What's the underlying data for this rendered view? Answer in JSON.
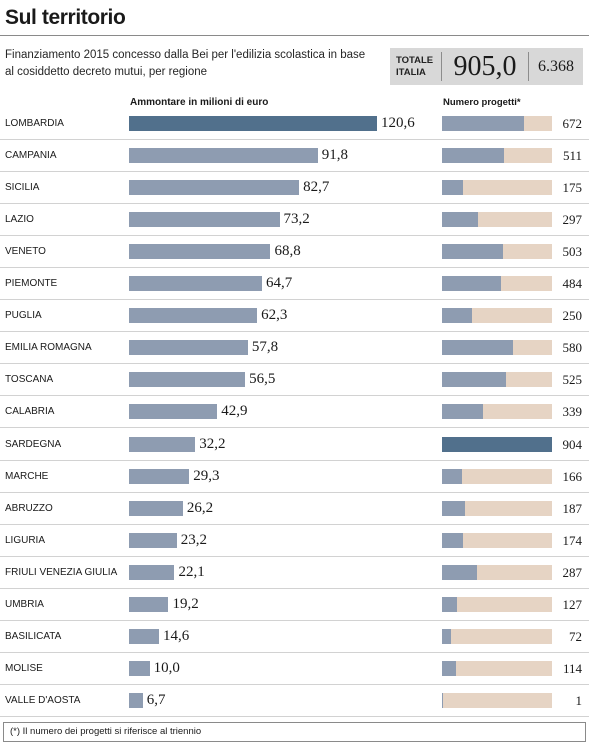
{
  "total": {
    "label_line1": "TOTALE",
    "label_line2": "ITALIA",
    "amount": "905,0",
    "projects": "6.368"
  },
  "footnote": "(*) Il numero dei progetti si riferisce al triennio",
  "colors": {
    "bar": "#8e9cb1",
    "bar_highlight": "#51708c",
    "track": "#e6d4c4"
  },
  "chart_data": {
    "type": "bar",
    "orientation": "horizontal",
    "title": "Sul territorio",
    "subtitle": "Finanziamento 2015 concesso dalla Bei per l'edilizia scolastica in base al cosiddetto decreto mutui, per regione",
    "categories": [
      "LOMBARDIA",
      "CAMPANIA",
      "SICILIA",
      "LAZIO",
      "VENETO",
      "PIEMONTE",
      "PUGLIA",
      "EMILIA ROMAGNA",
      "TOSCANA",
      "CALABRIA",
      "SARDEGNA",
      "MARCHE",
      "ABRUZZO",
      "LIGURIA",
      "FRIULI VENEZIA GIULIA",
      "UMBRIA",
      "BASILICATA",
      "MOLISE",
      "VALLE D'AOSTA"
    ],
    "series": [
      {
        "name": "Ammontare in milioni di euro",
        "values": [
          120.6,
          91.8,
          82.7,
          73.2,
          68.8,
          64.7,
          62.3,
          57.8,
          56.5,
          42.9,
          32.2,
          29.3,
          26.2,
          23.2,
          22.1,
          19.2,
          14.6,
          10.0,
          6.7
        ],
        "labels": [
          "120,6",
          "91,8",
          "82,7",
          "73,2",
          "68,8",
          "64,7",
          "62,3",
          "57,8",
          "56,5",
          "42,9",
          "32,2",
          "29,3",
          "26,2",
          "23,2",
          "22,1",
          "19,2",
          "14,6",
          "10,0",
          "6,7"
        ],
        "xlim": [
          0,
          120.6
        ]
      },
      {
        "name": "Numero progetti*",
        "values": [
          672,
          511,
          175,
          297,
          503,
          484,
          250,
          580,
          525,
          339,
          904,
          166,
          187,
          174,
          287,
          127,
          72,
          114,
          1
        ],
        "xlim": [
          0,
          904
        ]
      }
    ],
    "grid": false
  }
}
